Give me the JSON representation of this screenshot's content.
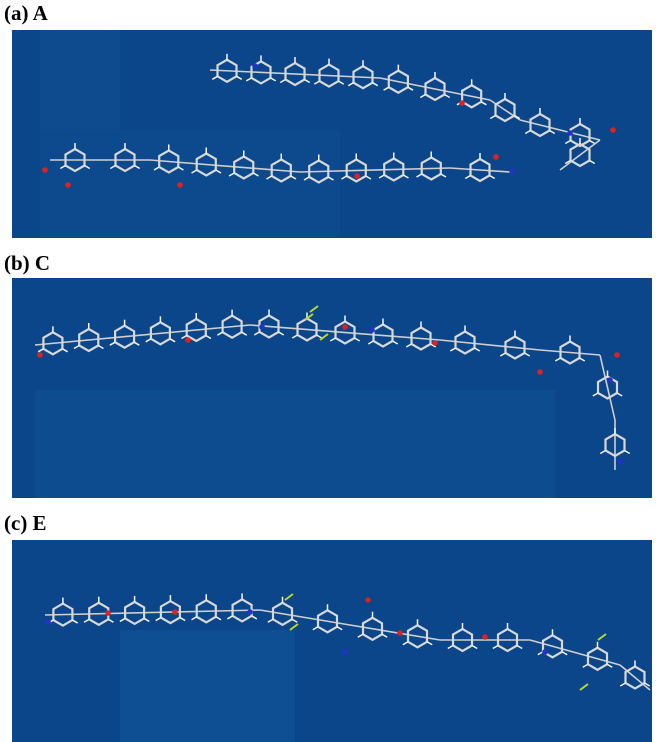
{
  "panels": [
    {
      "label": "(a) A"
    },
    {
      "label": "(b) C"
    },
    {
      "label": "(c) E"
    }
  ]
}
